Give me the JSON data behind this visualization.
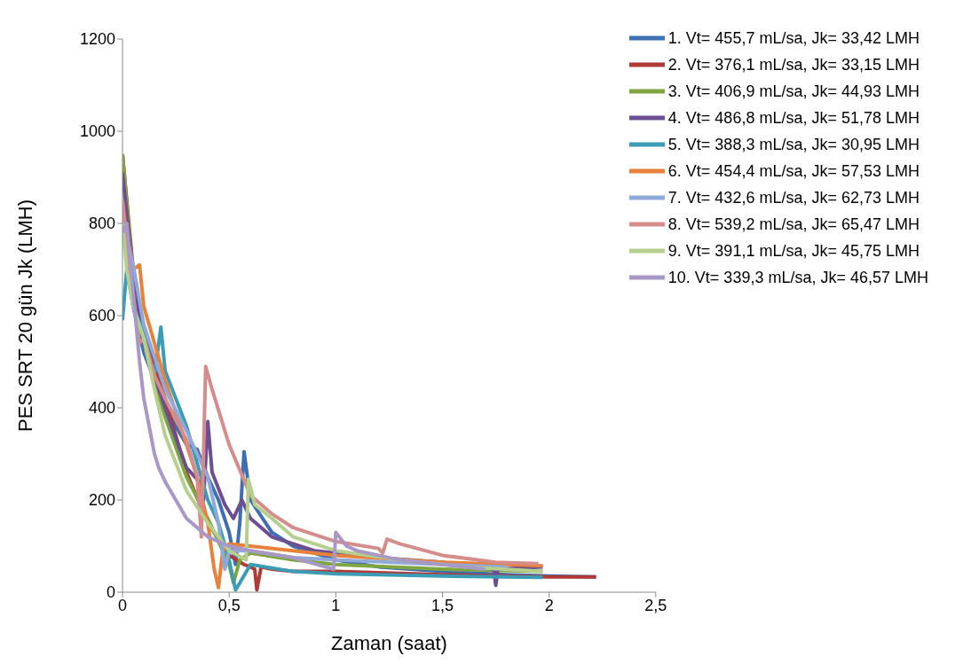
{
  "chart_data": {
    "type": "line",
    "xlabel": "Zaman (saat)",
    "ylabel": "PES SRT 20 gün Jk (LMH)",
    "xlim": [
      0,
      2.5
    ],
    "xticks": [
      {
        "value": 0,
        "label": "0"
      },
      {
        "value": 0.5,
        "label": "0,5"
      },
      {
        "value": 1,
        "label": "1"
      },
      {
        "value": 1.5,
        "label": "1,5"
      },
      {
        "value": 2,
        "label": "2"
      },
      {
        "value": 2.5,
        "label": "2,5"
      }
    ],
    "ylim": [
      0,
      1200
    ],
    "yticks": [
      0,
      200,
      400,
      600,
      800,
      1000,
      1200
    ],
    "grid": false,
    "legend": "top right",
    "marker": "none",
    "line_style": "solid",
    "series": [
      {
        "name": "1. Vt= 455,7 mL/sa, Jk= 33,42 LMH",
        "color": "#3e6fb0",
        "x": [
          0,
          0.05,
          0.1,
          0.2,
          0.3,
          0.35,
          0.4,
          0.45,
          0.5,
          0.53,
          0.55,
          0.57,
          0.6,
          0.7,
          0.8,
          1.0,
          1.2,
          1.5,
          1.8,
          2.0,
          2.22
        ],
        "values": [
          850,
          620,
          520,
          400,
          320,
          310,
          250,
          200,
          130,
          60,
          150,
          305,
          200,
          130,
          100,
          70,
          55,
          45,
          38,
          35,
          33
        ]
      },
      {
        "name": "2. Vt= 376,1 mL/sa, Jk= 33,15 LMH",
        "color": "#b03a36",
        "x": [
          0,
          0.05,
          0.1,
          0.2,
          0.3,
          0.4,
          0.5,
          0.57,
          0.6,
          0.62,
          0.63,
          0.65,
          0.7,
          0.8,
          1.0,
          1.5,
          2.0,
          2.22
        ],
        "values": [
          950,
          700,
          560,
          420,
          260,
          150,
          80,
          60,
          55,
          50,
          5,
          55,
          50,
          45,
          45,
          38,
          33,
          33
        ]
      },
      {
        "name": "3. Vt= 406,9 mL/sa, Jk= 44,93 LMH",
        "color": "#7fa540",
        "x": [
          0,
          0.05,
          0.1,
          0.2,
          0.3,
          0.4,
          0.45,
          0.5,
          0.52,
          0.55,
          0.6,
          0.8,
          1.0,
          1.5,
          1.97
        ],
        "values": [
          950,
          680,
          540,
          380,
          250,
          160,
          110,
          60,
          20,
          70,
          85,
          70,
          60,
          50,
          45
        ]
      },
      {
        "name": "4. Vt= 486,8 mL/sa, Jk= 51,78 LMH",
        "color": "#6b4f92",
        "x": [
          0,
          0.05,
          0.1,
          0.2,
          0.3,
          0.36,
          0.38,
          0.4,
          0.42,
          0.48,
          0.52,
          0.56,
          0.6,
          0.7,
          0.9,
          1.2,
          1.5,
          1.74,
          1.75,
          1.76,
          1.97
        ],
        "values": [
          910,
          680,
          540,
          400,
          270,
          240,
          200,
          370,
          260,
          190,
          160,
          200,
          160,
          120,
          90,
          75,
          65,
          50,
          15,
          50,
          55
        ]
      },
      {
        "name": "5. Vt= 388,3 mL/sa, Jk= 30,95 LMH",
        "color": "#3b9cb5",
        "x": [
          0,
          0.02,
          0.05,
          0.1,
          0.15,
          0.18,
          0.2,
          0.3,
          0.4,
          0.45,
          0.5,
          0.53,
          0.55,
          0.6,
          0.8,
          1.0,
          1.5,
          1.97
        ],
        "values": [
          590,
          700,
          620,
          560,
          470,
          575,
          480,
          360,
          200,
          150,
          70,
          5,
          20,
          60,
          45,
          40,
          35,
          32
        ]
      },
      {
        "name": "6. Vt= 454,4 mL/sa, Jk= 57,53 LMH",
        "color": "#e8823a",
        "x": [
          0,
          0.02,
          0.05,
          0.08,
          0.1,
          0.2,
          0.3,
          0.35,
          0.4,
          0.43,
          0.45,
          0.47,
          0.5,
          0.6,
          0.8,
          1.0,
          1.5,
          1.97
        ],
        "values": [
          850,
          720,
          700,
          710,
          620,
          460,
          320,
          250,
          150,
          50,
          10,
          90,
          105,
          100,
          90,
          80,
          65,
          57
        ]
      },
      {
        "name": "7. Vt= 432,6 mL/sa, Jk= 62,73 LMH",
        "color": "#8fa9d8",
        "x": [
          0,
          0.05,
          0.1,
          0.2,
          0.3,
          0.4,
          0.45,
          0.48,
          0.5,
          0.6,
          0.8,
          1.0,
          1.5,
          1.8
        ],
        "values": [
          810,
          710,
          580,
          440,
          350,
          250,
          150,
          50,
          90,
          90,
          75,
          70,
          60,
          55
        ]
      },
      {
        "name": "8. Vt= 539,2 mL/sa, Jk= 65,47 LMH",
        "color": "#d58c8a",
        "x": [
          0,
          0.05,
          0.08,
          0.1,
          0.15,
          0.2,
          0.3,
          0.35,
          0.37,
          0.39,
          0.42,
          0.5,
          0.6,
          0.7,
          0.8,
          1.0,
          1.2,
          1.22,
          1.24,
          1.3,
          1.5,
          1.75,
          1.95
        ],
        "values": [
          850,
          640,
          540,
          550,
          470,
          420,
          330,
          250,
          120,
          490,
          440,
          320,
          210,
          170,
          140,
          110,
          95,
          85,
          115,
          105,
          80,
          65,
          62
        ]
      },
      {
        "name": "9. Vt= 391,1 mL/sa, Jk= 45,75 LMH",
        "color": "#b5cf8f",
        "x": [
          0,
          0.02,
          0.05,
          0.1,
          0.15,
          0.2,
          0.3,
          0.4,
          0.5,
          0.58,
          0.59,
          0.62,
          0.7,
          0.8,
          1.0,
          1.3,
          1.6,
          1.97
        ],
        "values": [
          800,
          700,
          620,
          550,
          440,
          340,
          220,
          150,
          90,
          70,
          245,
          190,
          160,
          120,
          90,
          70,
          55,
          45
        ]
      },
      {
        "name": "10. Vt= 339,3 mL/sa, Jk= 46,57 LMH",
        "color": "#a898c6",
        "x": [
          0,
          0.02,
          0.05,
          0.08,
          0.1,
          0.15,
          0.17,
          0.2,
          0.3,
          0.4,
          0.5,
          0.6,
          0.8,
          0.99,
          1.0,
          1.05,
          1.1,
          1.3,
          1.5,
          1.7
        ],
        "values": [
          780,
          800,
          650,
          500,
          420,
          300,
          270,
          240,
          160,
          120,
          100,
          90,
          75,
          50,
          130,
          100,
          90,
          70,
          60,
          50
        ]
      }
    ]
  }
}
